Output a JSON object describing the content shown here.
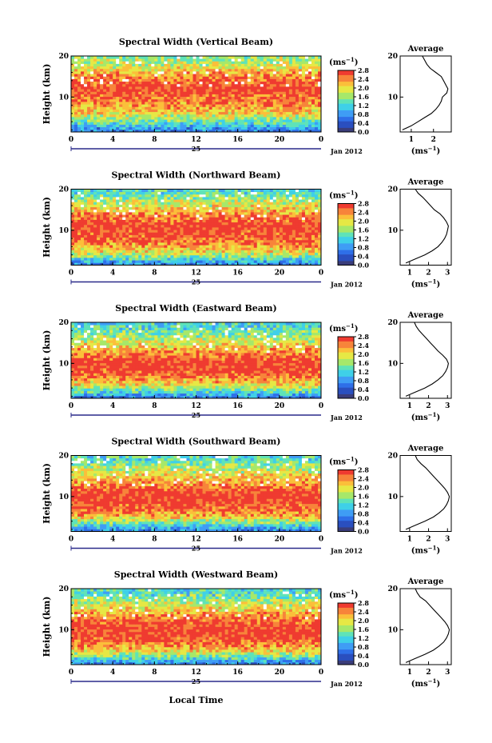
{
  "figure": {
    "x_axis_label": "Local Time",
    "day_label": "25",
    "date_label": "Jan 2012",
    "y_axis_label": "Height (km)",
    "average_title": "Average",
    "colorbar_unit": "(ms",
    "unit_exponent": "−1",
    "unit_close": ")"
  },
  "colors": {
    "scale": [
      "#3a3d7a",
      "#2a4fbf",
      "#2f6fe8",
      "#3f9df5",
      "#3fd0e8",
      "#5fe3b8",
      "#a6e86a",
      "#e6e845",
      "#fbbf3a",
      "#f7843a",
      "#ef3b30"
    ],
    "background": "#ffffff",
    "ink": "#000000"
  },
  "chart_data": [
    {
      "type": "heatmap",
      "title": "Spectral Width (Vertical Beam)",
      "xlabel": "",
      "ylabel": "Height (km)",
      "x_ticks": [
        "0",
        "4",
        "8",
        "12",
        "16",
        "20",
        "0"
      ],
      "xlim": [
        0,
        24
      ],
      "y_ticks": [
        "10",
        "20"
      ],
      "ylim": [
        1.5,
        20
      ],
      "colorbar": {
        "unit": "(ms−1)",
        "ticks": [
          "0.0",
          "0.4",
          "0.8",
          "1.2",
          "1.6",
          "2.0",
          "2.4",
          "2.8"
        ],
        "range": [
          0,
          2.8
        ]
      },
      "profile": {
        "title": "Average",
        "xlabel": "(ms−1)",
        "x_ticks": [
          "1",
          "2"
        ],
        "xlim": [
          0.5,
          2.8
        ],
        "y_ticks": [
          "10",
          "20"
        ],
        "ylim": [
          1.5,
          20
        ],
        "height_km": [
          2,
          3,
          4,
          5,
          6,
          7,
          8,
          9,
          10,
          11,
          12,
          13,
          14,
          15,
          16,
          17,
          18,
          19,
          20
        ],
        "width_ms": [
          0.6,
          1.0,
          1.3,
          1.6,
          1.9,
          2.1,
          2.25,
          2.35,
          2.4,
          2.6,
          2.65,
          2.55,
          2.45,
          2.35,
          2.1,
          1.85,
          1.7,
          1.6,
          1.5
        ]
      }
    },
    {
      "type": "heatmap",
      "title": "Spectral Width (Northward Beam)",
      "xlabel": "",
      "ylabel": "Height (km)",
      "x_ticks": [
        "0",
        "4",
        "8",
        "12",
        "16",
        "20",
        "0"
      ],
      "xlim": [
        0,
        24
      ],
      "y_ticks": [
        "10",
        "20"
      ],
      "ylim": [
        1.5,
        20
      ],
      "colorbar": {
        "unit": "(ms−1)",
        "ticks": [
          "0.0",
          "0.4",
          "0.8",
          "1.2",
          "1.6",
          "2.0",
          "2.4",
          "2.8"
        ],
        "range": [
          0,
          2.8
        ]
      },
      "profile": {
        "title": "Average",
        "xlabel": "(ms−1)",
        "x_ticks": [
          "1",
          "2",
          "3"
        ],
        "xlim": [
          0.5,
          3.2
        ],
        "y_ticks": [
          "10",
          "20"
        ],
        "ylim": [
          1.5,
          20
        ],
        "height_km": [
          2,
          3,
          4,
          5,
          6,
          7,
          8,
          9,
          10,
          11,
          12,
          13,
          14,
          15,
          16,
          17,
          18,
          19,
          20
        ],
        "width_ms": [
          0.8,
          1.3,
          1.8,
          2.2,
          2.5,
          2.7,
          2.85,
          2.95,
          3.0,
          3.05,
          2.95,
          2.8,
          2.6,
          2.3,
          2.1,
          1.9,
          1.7,
          1.45,
          1.3
        ]
      }
    },
    {
      "type": "heatmap",
      "title": "Spectral Width (Eastward Beam)",
      "xlabel": "",
      "ylabel": "Height (km)",
      "x_ticks": [
        "0",
        "4",
        "8",
        "12",
        "16",
        "20",
        "0"
      ],
      "xlim": [
        0,
        24
      ],
      "y_ticks": [
        "10",
        "20"
      ],
      "ylim": [
        1.5,
        20
      ],
      "colorbar": {
        "unit": "(ms−1)",
        "ticks": [
          "0.0",
          "0.4",
          "0.8",
          "1.2",
          "1.6",
          "2.0",
          "2.4",
          "2.8"
        ],
        "range": [
          0,
          2.8
        ]
      },
      "profile": {
        "title": "Average",
        "xlabel": "(ms−1)",
        "x_ticks": [
          "1",
          "2",
          "3"
        ],
        "xlim": [
          0.5,
          3.2
        ],
        "y_ticks": [
          "10",
          "20"
        ],
        "ylim": [
          1.5,
          20
        ],
        "height_km": [
          2,
          3,
          4,
          5,
          6,
          7,
          8,
          9,
          10,
          11,
          12,
          13,
          14,
          15,
          16,
          17,
          18,
          19,
          20
        ],
        "width_ms": [
          0.8,
          1.3,
          1.8,
          2.2,
          2.5,
          2.75,
          2.9,
          3.0,
          3.05,
          2.95,
          2.75,
          2.5,
          2.3,
          2.1,
          1.9,
          1.7,
          1.5,
          1.35,
          1.25
        ]
      }
    },
    {
      "type": "heatmap",
      "title": "Spectral Width (Southward Beam)",
      "xlabel": "",
      "ylabel": "Height (km)",
      "x_ticks": [
        "0",
        "4",
        "8",
        "12",
        "16",
        "20",
        "0"
      ],
      "xlim": [
        0,
        24
      ],
      "y_ticks": [
        "10",
        "20"
      ],
      "ylim": [
        1.5,
        20
      ],
      "colorbar": {
        "unit": "(ms−1)",
        "ticks": [
          "0.0",
          "0.4",
          "0.8",
          "1.2",
          "1.6",
          "2.0",
          "2.4",
          "2.8"
        ],
        "range": [
          0,
          2.8
        ]
      },
      "profile": {
        "title": "Average",
        "xlabel": "(ms−1)",
        "x_ticks": [
          "1",
          "2",
          "3"
        ],
        "xlim": [
          0.5,
          3.2
        ],
        "y_ticks": [
          "10",
          "20"
        ],
        "ylim": [
          1.5,
          20
        ],
        "height_km": [
          2,
          3,
          4,
          5,
          6,
          7,
          8,
          9,
          10,
          11,
          12,
          13,
          14,
          15,
          16,
          17,
          18,
          19,
          20
        ],
        "width_ms": [
          0.8,
          1.3,
          1.8,
          2.25,
          2.55,
          2.8,
          2.95,
          3.05,
          3.1,
          3.0,
          2.85,
          2.65,
          2.45,
          2.25,
          2.05,
          1.85,
          1.6,
          1.4,
          1.3
        ]
      }
    },
    {
      "type": "heatmap",
      "title": "Spectral Width (Westward Beam)",
      "xlabel": "Local Time",
      "ylabel": "Height (km)",
      "x_ticks": [
        "0",
        "4",
        "8",
        "12",
        "16",
        "20",
        "0"
      ],
      "xlim": [
        0,
        24
      ],
      "y_ticks": [
        "10",
        "20"
      ],
      "ylim": [
        1.5,
        20
      ],
      "colorbar": {
        "unit": "(ms−1)",
        "ticks": [
          "0.0",
          "0.4",
          "0.8",
          "1.2",
          "1.6",
          "2.0",
          "2.4",
          "2.8"
        ],
        "range": [
          0,
          2.8
        ]
      },
      "profile": {
        "title": "Average",
        "xlabel": "(ms−1)",
        "x_ticks": [
          "1",
          "2",
          "3"
        ],
        "xlim": [
          0.5,
          3.2
        ],
        "y_ticks": [
          "10",
          "20"
        ],
        "ylim": [
          1.5,
          20
        ],
        "height_km": [
          2,
          3,
          4,
          5,
          6,
          7,
          8,
          9,
          10,
          11,
          12,
          13,
          14,
          15,
          16,
          17,
          18,
          19,
          20
        ],
        "width_ms": [
          0.8,
          1.3,
          1.8,
          2.25,
          2.55,
          2.8,
          2.95,
          3.05,
          3.1,
          3.0,
          2.85,
          2.65,
          2.45,
          2.25,
          2.05,
          1.85,
          1.55,
          1.4,
          1.3
        ]
      }
    }
  ]
}
